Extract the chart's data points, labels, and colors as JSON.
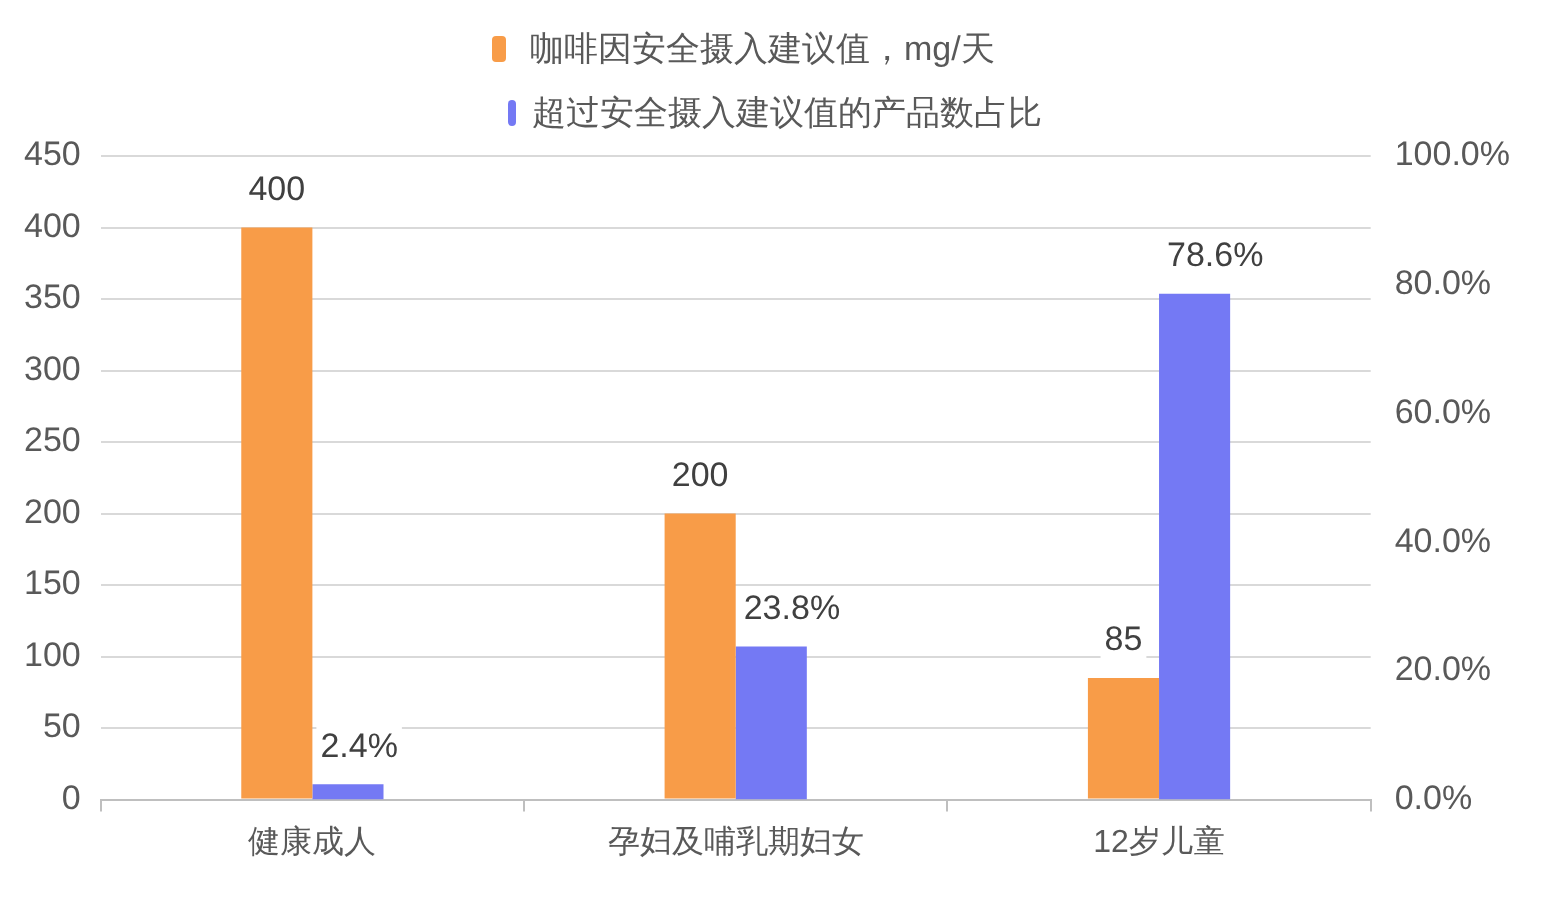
{
  "chart_data": {
    "type": "bar",
    "categories": [
      "健康成人",
      "孕妇及哺乳期妇女",
      "12岁儿童"
    ],
    "series": [
      {
        "name": "咖啡因安全摄入建议值，mg/天",
        "color": "#f89c48",
        "values": [
          400,
          200,
          85
        ],
        "value_labels": [
          "400",
          "200",
          "85"
        ]
      },
      {
        "name": "超过安全摄入建议值的产品数占比",
        "color": "#7479f4",
        "axis": "y2",
        "values": [
          2.4,
          23.8,
          78.6
        ],
        "value_labels": [
          "2.4%",
          "23.8%",
          "78.6%"
        ]
      }
    ],
    "ylim": [
      0,
      450
    ],
    "yticks": [
      0,
      50,
      100,
      150,
      200,
      250,
      300,
      350,
      400,
      450
    ],
    "y2lim": [
      0,
      100
    ],
    "y2ticks": [
      {
        "value": 0,
        "label": "0.0%"
      },
      {
        "value": 20,
        "label": "20.0%"
      },
      {
        "value": 40,
        "label": "40.0%"
      },
      {
        "value": 60,
        "label": "60.0%"
      },
      {
        "value": 80,
        "label": "80.0%"
      },
      {
        "value": 100,
        "label": "100.0%"
      }
    ],
    "grid": "y",
    "legend": "top"
  }
}
